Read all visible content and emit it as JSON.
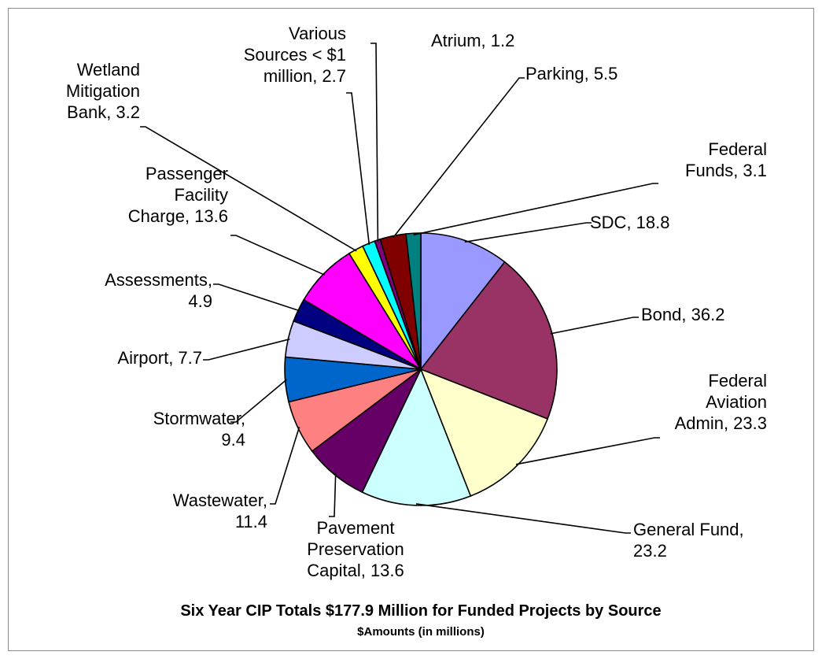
{
  "chart_data": {
    "type": "pie",
    "title": "Six Year CIP Totals $177.9 Million for Funded Projects by Source",
    "subtitle": "$Amounts (in millions)",
    "legend": "none",
    "slices": [
      {
        "label": [
          "SDC, 18.8"
        ],
        "value": 18.8,
        "color": "#9999ff"
      },
      {
        "label": [
          "Bond, 36.2"
        ],
        "value": 36.2,
        "color": "#993366"
      },
      {
        "label": [
          "Federal",
          "Aviation",
          "Admin, 23.3"
        ],
        "value": 23.3,
        "color": "#ffffcc"
      },
      {
        "label": [
          "General Fund,",
          "23.2"
        ],
        "value": 23.2,
        "color": "#ccffff"
      },
      {
        "label": [
          "Pavement",
          "Preservation",
          "Capital, 13.6"
        ],
        "value": 13.6,
        "color": "#660066"
      },
      {
        "label": [
          "Wastewater,",
          "11.4"
        ],
        "value": 11.4,
        "color": "#ff8080"
      },
      {
        "label": [
          "Stormwater,",
          "9.4"
        ],
        "value": 9.4,
        "color": "#0066cc"
      },
      {
        "label": [
          "Airport, 7.7"
        ],
        "value": 7.7,
        "color": "#ccccff"
      },
      {
        "label": [
          "Assessments,",
          "4.9"
        ],
        "value": 4.9,
        "color": "#000080"
      },
      {
        "label": [
          "Passenger",
          "Facility",
          "Charge, 13.6"
        ],
        "value": 13.6,
        "color": "#ff00ff"
      },
      {
        "label": [
          "Wetland",
          "Mitigation",
          "Bank, 3.2"
        ],
        "value": 3.2,
        "color": "#ffff00"
      },
      {
        "label": [
          "Various",
          "Sources < $1",
          "million, 2.7"
        ],
        "value": 2.7,
        "color": "#00ffff"
      },
      {
        "label": [
          "Atrium, 1.2"
        ],
        "value": 1.2,
        "color": "#800080"
      },
      {
        "label": [
          "Parking, 5.5"
        ],
        "value": 5.5,
        "color": "#800000"
      },
      {
        "label": [
          "Federal",
          "Funds, 3.1"
        ],
        "value": 3.1,
        "color": "#008080"
      }
    ]
  }
}
